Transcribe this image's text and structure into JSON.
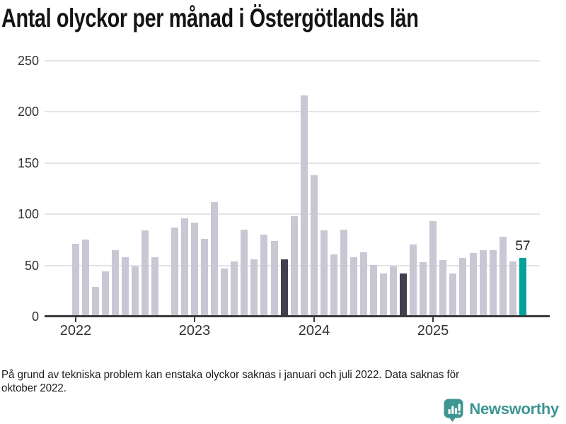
{
  "title": "Antal olyckor per månad i Östergötlands län",
  "footnote": {
    "line1": "På grund av tekniska problem kan enstaka olyckor saknas i januari och juli 2022. Data saknas för",
    "line2": "oktober 2022."
  },
  "logo": {
    "text": "Newsworthy",
    "color": "#3e9693"
  },
  "colors": {
    "bar_normal": "#c9c7d3",
    "bar_dark": "#42404f",
    "bar_highlight": "#00a29a",
    "axis": "#3b3b3b",
    "gridline": "#e4e4e6",
    "tick_label": "#333333",
    "annotation": "#1d1d1d"
  },
  "chart_data": {
    "type": "bar",
    "title": "Antal olyckor per månad i Östergötlands län",
    "xlabel": "",
    "ylabel": "",
    "ylim": [
      0,
      250
    ],
    "yticks": [
      0,
      50,
      100,
      150,
      200,
      250
    ],
    "grid": true,
    "legend": false,
    "months": [
      "2022-01",
      "2022-02",
      "2022-03",
      "2022-04",
      "2022-05",
      "2022-06",
      "2022-07",
      "2022-08",
      "2022-09",
      "2022-10",
      "2022-11",
      "2022-12",
      "2023-01",
      "2023-02",
      "2023-03",
      "2023-04",
      "2023-05",
      "2023-06",
      "2023-07",
      "2023-08",
      "2023-09",
      "2023-10",
      "2023-11",
      "2023-12",
      "2024-01",
      "2024-02",
      "2024-03",
      "2024-04",
      "2024-05",
      "2024-06",
      "2024-07",
      "2024-08",
      "2024-09",
      "2024-10",
      "2024-11",
      "2024-12",
      "2025-01",
      "2025-02",
      "2025-03",
      "2025-04",
      "2025-05",
      "2025-06",
      "2025-07",
      "2025-08",
      "2025-09",
      "2025-10"
    ],
    "values": [
      71,
      75,
      29,
      44,
      65,
      58,
      49,
      84,
      58,
      null,
      87,
      96,
      92,
      76,
      112,
      47,
      54,
      85,
      56,
      80,
      74,
      56,
      98,
      216,
      138,
      84,
      61,
      85,
      58,
      63,
      50,
      42,
      49,
      42,
      70,
      53,
      93,
      55,
      42,
      57,
      62,
      65,
      65,
      78,
      54,
      57
    ],
    "missing_months": [
      "2022-10"
    ],
    "dark_indices": [
      21,
      33
    ],
    "highlight_index": 45,
    "annotation": {
      "index": 45,
      "text": "57"
    },
    "year_ticks": [
      {
        "label": "2022",
        "index": 0
      },
      {
        "label": "2023",
        "index": 12
      },
      {
        "label": "2024",
        "index": 24
      },
      {
        "label": "2025",
        "index": 36
      }
    ]
  }
}
